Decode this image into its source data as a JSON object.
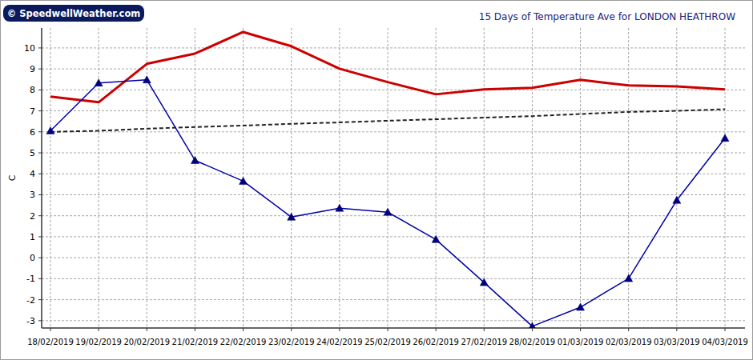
{
  "chart_data": {
    "type": "line",
    "title": "15 Days of Temperature Ave for LONDON HEATHROW",
    "annotations": [
      "© SpeedwellWeather.com"
    ],
    "ylabel": "C",
    "categories": [
      "18/02/2019",
      "19/02/2019",
      "20/02/2019",
      "21/02/2019",
      "22/02/2019",
      "23/02/2019",
      "24/02/2019",
      "25/02/2019",
      "26/02/2019",
      "27/02/2019",
      "28/02/2019",
      "01/03/2019",
      "02/03/2019",
      "03/03/2019",
      "04/03/2019"
    ],
    "series": [
      {
        "color": "#cc0000",
        "marker": "none",
        "line_style": "solid",
        "values": [
          7.68,
          7.41,
          9.24,
          9.73,
          10.76,
          10.08,
          9.01,
          8.37,
          7.79,
          8.02,
          8.1,
          8.48,
          8.21,
          8.17,
          8.02
        ]
      },
      {
        "color": "#222222",
        "marker": "none",
        "line_style": "dashed",
        "values": [
          6.0,
          6.05,
          6.15,
          6.23,
          6.3,
          6.38,
          6.45,
          6.53,
          6.6,
          6.68,
          6.75,
          6.85,
          6.95,
          7.0,
          7.08
        ]
      },
      {
        "color": "#0000aa",
        "marker": "triangle",
        "line_style": "solid",
        "values": [
          6.05,
          8.33,
          8.48,
          4.64,
          3.65,
          1.94,
          2.36,
          2.17,
          0.87,
          -1.18,
          -3.27,
          -2.36,
          -0.99,
          2.74,
          5.7
        ]
      }
    ],
    "ylim": [
      -3.35,
      10.95
    ],
    "yticks": [
      -3,
      -2,
      -1,
      0,
      1,
      2,
      3,
      4,
      5,
      6,
      7,
      8,
      9,
      10
    ],
    "grid": true
  }
}
